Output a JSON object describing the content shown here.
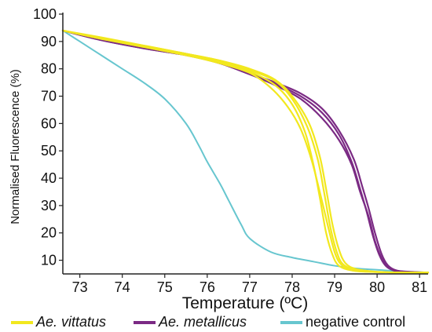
{
  "colors": {
    "vittatus": "#f2e81e",
    "metallicus": "#7b2a84",
    "negative": "#67c6cf"
  },
  "chart_data": {
    "type": "line",
    "title": "",
    "xlabel": "Temperature (ºC)",
    "ylabel": "Normalised Fluorescence (%)",
    "xlim": [
      72.6,
      81.2
    ],
    "ylim": [
      5,
      100
    ],
    "xticks": [
      "73",
      "74",
      "75",
      "76",
      "77",
      "78",
      "79",
      "80",
      "81"
    ],
    "yticks": [
      "10",
      "20",
      "30",
      "40",
      "50",
      "60",
      "70",
      "80",
      "90",
      "100"
    ],
    "grid": false,
    "legend_position": "bottom",
    "legend": [
      {
        "label": "Ae. vittatus",
        "color": "#f2e81e",
        "italic": true
      },
      {
        "label": "Ae. metallicus",
        "color": "#7b2a84",
        "italic": true
      },
      {
        "label": "negative control",
        "color": "#67c6cf",
        "italic": false
      }
    ],
    "series": [
      {
        "group": "Ae. vittatus",
        "color": "#f2e81e",
        "x": [
          72.6,
          73.5,
          74.5,
          75.5,
          76.3,
          77.0,
          77.6,
          78.0,
          78.3,
          78.5,
          78.65,
          78.8,
          78.95,
          79.1,
          79.4,
          79.8,
          80.5,
          81.2
        ],
        "y": [
          94,
          91,
          88,
          85,
          82.5,
          79,
          74,
          67,
          57,
          45,
          33,
          20,
          12,
          8,
          6.3,
          5.8,
          5.5,
          5.5
        ]
      },
      {
        "group": "Ae. vittatus",
        "color": "#f2e81e",
        "x": [
          72.6,
          73.5,
          74.5,
          75.5,
          76.3,
          77.0,
          77.6,
          78.0,
          78.35,
          78.6,
          78.75,
          78.9,
          79.05,
          79.2,
          79.5,
          79.9,
          80.5,
          81.2
        ],
        "y": [
          94,
          91,
          88.5,
          85.5,
          83,
          79.5,
          75.5,
          69,
          59,
          47,
          35,
          22,
          13,
          8.5,
          6.5,
          5.8,
          5.5,
          5.5
        ]
      },
      {
        "group": "Ae. vittatus",
        "color": "#f2e81e",
        "x": [
          72.6,
          73.5,
          74.5,
          75.5,
          76.3,
          77.0,
          77.6,
          78.0,
          78.4,
          78.65,
          78.8,
          78.95,
          79.1,
          79.25,
          79.5,
          79.9,
          80.5,
          81.2
        ],
        "y": [
          94,
          91.5,
          88.5,
          85.5,
          83,
          80,
          76,
          70,
          60,
          48,
          36,
          23,
          14,
          9,
          6.8,
          5.9,
          5.5,
          5.5
        ]
      },
      {
        "group": "Ae. vittatus",
        "color": "#f2e81e",
        "x": [
          72.6,
          73.5,
          74.5,
          75.5,
          76.3,
          77.0,
          77.5,
          77.9,
          78.2,
          78.45,
          78.65,
          78.85,
          79.0,
          79.15,
          79.4,
          79.8,
          80.5,
          81.2
        ],
        "y": [
          94,
          91,
          88,
          85,
          82,
          78.5,
          73,
          66,
          58,
          47,
          35,
          22,
          13,
          8.5,
          6.3,
          5.8,
          5.5,
          5.5
        ]
      },
      {
        "group": "Ae. metallicus",
        "color": "#7b2a84",
        "x": [
          72.6,
          73.5,
          74.5,
          75.5,
          76.3,
          77.0,
          77.6,
          78.2,
          78.7,
          79.1,
          79.4,
          79.6,
          79.75,
          79.9,
          80.05,
          80.2,
          80.4,
          80.7,
          81.2
        ],
        "y": [
          94,
          90.5,
          87.5,
          85,
          82,
          78,
          74.5,
          70,
          64,
          56,
          46,
          36,
          28,
          19,
          12,
          8,
          6.2,
          5.7,
          5.5
        ]
      },
      {
        "group": "Ae. metallicus",
        "color": "#7b2a84",
        "x": [
          72.6,
          73.5,
          74.5,
          75.5,
          76.3,
          77.0,
          77.6,
          78.2,
          78.7,
          79.1,
          79.45,
          79.65,
          79.8,
          79.95,
          80.1,
          80.25,
          80.45,
          80.75,
          81.2
        ],
        "y": [
          94,
          91,
          88,
          85.5,
          82.5,
          78.5,
          75,
          71,
          65.5,
          57.5,
          47,
          37,
          29,
          20,
          12.5,
          8.2,
          6.3,
          5.8,
          5.5
        ]
      },
      {
        "group": "Ae. metallicus",
        "color": "#7b2a84",
        "x": [
          72.6,
          73.5,
          74.5,
          75.5,
          76.3,
          77.0,
          77.6,
          78.2,
          78.7,
          79.1,
          79.4,
          79.6,
          79.8,
          79.95,
          80.1,
          80.25,
          80.45,
          80.75,
          81.2
        ],
        "y": [
          94,
          90.5,
          87.5,
          85,
          82,
          78,
          74,
          69,
          62,
          54,
          45,
          35,
          26,
          17,
          11,
          7.8,
          6.2,
          5.7,
          5.5
        ]
      },
      {
        "group": "negative control",
        "color": "#67c6cf",
        "x": [
          72.6,
          73.0,
          73.5,
          74.0,
          74.5,
          75.0,
          75.5,
          75.8,
          76.0,
          76.3,
          76.5,
          76.8,
          77.0,
          77.5,
          78.0,
          78.5,
          79.0,
          79.5,
          80.0,
          80.5,
          81.2
        ],
        "y": [
          94,
          90,
          85,
          80,
          75,
          69,
          60,
          52,
          46,
          38,
          32,
          23,
          18,
          13,
          11,
          9.5,
          8,
          7,
          6.5,
          6,
          5.5
        ]
      }
    ]
  }
}
